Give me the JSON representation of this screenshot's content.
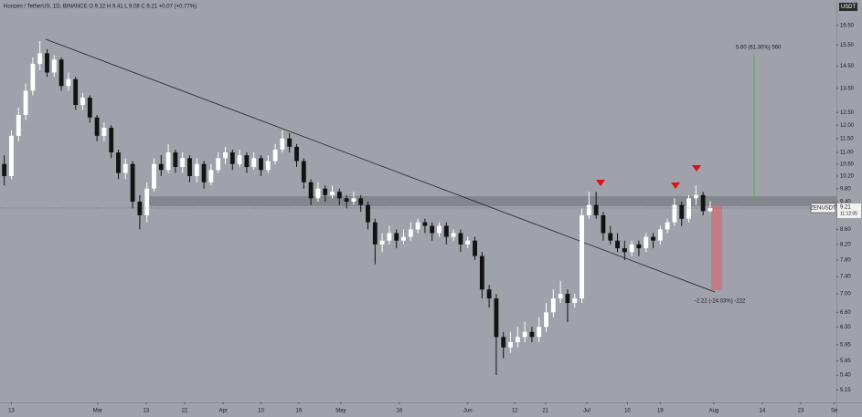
{
  "chart_data": {
    "type": "candlestick",
    "title": "Horizen / TetherUS, 1D, BINANCE  O 9.12  H 9.41  L 9.08  C 9.21  +0.07 (+0.77%)",
    "currency_label": "USDT",
    "log_scale": true,
    "up_color": "#ffffff",
    "down_color": "#131313",
    "xlim": [
      -0.6,
      116.7
    ],
    "ylim": [
      4.95,
      17.9
    ],
    "xticks": [
      {
        "value": 1,
        "label": "13"
      },
      {
        "value": 13.1,
        "label": "Mar"
      },
      {
        "value": 19.9,
        "label": "13"
      },
      {
        "value": 25.3,
        "label": "22"
      },
      {
        "value": 30.7,
        "label": "Apr"
      },
      {
        "value": 36,
        "label": "10"
      },
      {
        "value": 41.3,
        "label": "19"
      },
      {
        "value": 47.2,
        "label": "May"
      },
      {
        "value": 55.4,
        "label": "16"
      },
      {
        "value": 65,
        "label": "Jun"
      },
      {
        "value": 71.6,
        "label": "12"
      },
      {
        "value": 75.9,
        "label": "21"
      },
      {
        "value": 81.7,
        "label": "Jul"
      },
      {
        "value": 87.4,
        "label": "10"
      },
      {
        "value": 92,
        "label": "19"
      },
      {
        "value": 99.5,
        "label": "Aug"
      },
      {
        "value": 106.3,
        "label": "14"
      },
      {
        "value": 111.7,
        "label": "23"
      },
      {
        "value": 116.4,
        "label": "Se"
      }
    ],
    "yticks": [
      {
        "value": 16.5,
        "label": "16.50"
      },
      {
        "value": 15.5,
        "label": "15.50"
      },
      {
        "value": 14.5,
        "label": "14.50"
      },
      {
        "value": 13.5,
        "label": "13.50"
      },
      {
        "value": 12.5,
        "label": "12.50"
      },
      {
        "value": 12,
        "label": "12.00"
      },
      {
        "value": 11.5,
        "label": "11.50"
      },
      {
        "value": 11,
        "label": "11.00"
      },
      {
        "value": 10.6,
        "label": "10.60"
      },
      {
        "value": 10.2,
        "label": "10.20"
      },
      {
        "value": 9.8,
        "label": "9.80"
      },
      {
        "value": 9.4,
        "label": "9.40"
      },
      {
        "value": 9,
        "label": "9.00"
      },
      {
        "value": 8.6,
        "label": "8.60"
      },
      {
        "value": 8.2,
        "label": "8.20"
      },
      {
        "value": 7.8,
        "label": "7.80"
      },
      {
        "value": 7.4,
        "label": "7.40"
      },
      {
        "value": 7,
        "label": "7.00"
      },
      {
        "value": 6.6,
        "label": "6.60"
      },
      {
        "value": 6.3,
        "label": "6.30"
      },
      {
        "value": 5.95,
        "label": "5.95"
      },
      {
        "value": 5.65,
        "label": "5.65"
      },
      {
        "value": 5.4,
        "label": "5.40"
      },
      {
        "value": 5.15,
        "label": "5.15"
      }
    ],
    "candles": [
      [
        10.6,
        10.9,
        9.9,
        10.2
      ],
      [
        10.2,
        11.8,
        10.1,
        11.6
      ],
      [
        11.6,
        12.7,
        11.4,
        12.4
      ],
      [
        12.4,
        13.7,
        12.2,
        13.4
      ],
      [
        13.4,
        14.9,
        13.2,
        14.6
      ],
      [
        14.6,
        15.7,
        14.3,
        15.1
      ],
      [
        15.1,
        15.3,
        14.0,
        14.2
      ],
      [
        14.2,
        15.0,
        14.0,
        14.8
      ],
      [
        14.8,
        14.9,
        13.4,
        13.6
      ],
      [
        13.6,
        14.2,
        13.4,
        13.9
      ],
      [
        13.9,
        14.0,
        12.6,
        12.8
      ],
      [
        12.8,
        13.3,
        12.6,
        13.1
      ],
      [
        13.1,
        13.2,
        12.1,
        12.3
      ],
      [
        12.3,
        12.4,
        11.4,
        11.6
      ],
      [
        11.6,
        12.1,
        11.4,
        11.9
      ],
      [
        11.9,
        12.0,
        10.8,
        11.0
      ],
      [
        11.0,
        11.1,
        10.1,
        10.3
      ],
      [
        10.3,
        10.8,
        10.1,
        10.6
      ],
      [
        10.6,
        10.7,
        9.2,
        9.4
      ],
      [
        9.4,
        9.6,
        8.6,
        9.0
      ],
      [
        9.0,
        10.0,
        8.8,
        9.8
      ],
      [
        9.8,
        10.8,
        9.7,
        10.6
      ],
      [
        10.6,
        10.9,
        10.2,
        10.4
      ],
      [
        10.4,
        11.3,
        10.3,
        11.0
      ],
      [
        11.0,
        11.1,
        10.3,
        10.5
      ],
      [
        10.5,
        11.0,
        10.3,
        10.8
      ],
      [
        10.8,
        10.9,
        10.0,
        10.2
      ],
      [
        10.2,
        10.8,
        10.0,
        10.6
      ],
      [
        10.6,
        10.7,
        9.8,
        10.0
      ],
      [
        10.0,
        10.6,
        9.9,
        10.4
      ],
      [
        10.4,
        11.0,
        10.3,
        10.8
      ],
      [
        10.8,
        11.2,
        10.6,
        11.0
      ],
      [
        11.0,
        11.1,
        10.4,
        10.6
      ],
      [
        10.6,
        11.1,
        10.5,
        10.9
      ],
      [
        10.9,
        11.0,
        10.3,
        10.5
      ],
      [
        10.5,
        11.0,
        10.4,
        10.8
      ],
      [
        10.8,
        10.9,
        10.2,
        10.4
      ],
      [
        10.4,
        10.9,
        10.3,
        10.7
      ],
      [
        10.7,
        11.3,
        10.6,
        11.1
      ],
      [
        11.1,
        11.8,
        11.0,
        11.5
      ],
      [
        11.5,
        11.7,
        11.0,
        11.2
      ],
      [
        11.2,
        11.3,
        10.5,
        10.7
      ],
      [
        10.7,
        10.8,
        9.8,
        10.0
      ],
      [
        10.0,
        10.1,
        9.3,
        9.5
      ],
      [
        9.5,
        10.0,
        9.4,
        9.8
      ],
      [
        9.8,
        9.9,
        9.4,
        9.6
      ],
      [
        9.6,
        9.9,
        9.5,
        9.7
      ],
      [
        9.7,
        9.8,
        9.3,
        9.5
      ],
      [
        9.5,
        9.6,
        9.2,
        9.4
      ],
      [
        9.4,
        9.7,
        9.3,
        9.5
      ],
      [
        9.5,
        9.6,
        9.1,
        9.3
      ],
      [
        9.3,
        9.4,
        8.6,
        8.8
      ],
      [
        8.8,
        8.9,
        7.7,
        8.2
      ],
      [
        8.2,
        8.5,
        8.0,
        8.3
      ],
      [
        8.3,
        8.7,
        8.2,
        8.5
      ],
      [
        8.5,
        8.6,
        8.1,
        8.3
      ],
      [
        8.3,
        8.6,
        8.2,
        8.4
      ],
      [
        8.4,
        8.8,
        8.3,
        8.6
      ],
      [
        8.6,
        8.9,
        8.5,
        8.8
      ],
      [
        8.8,
        8.9,
        8.5,
        8.7
      ],
      [
        8.7,
        8.8,
        8.3,
        8.5
      ],
      [
        8.5,
        8.8,
        8.4,
        8.7
      ],
      [
        8.7,
        8.8,
        8.2,
        8.4
      ],
      [
        8.4,
        8.6,
        8.3,
        8.5
      ],
      [
        8.5,
        8.6,
        8.0,
        8.2
      ],
      [
        8.2,
        8.4,
        8.1,
        8.3
      ],
      [
        8.3,
        8.4,
        7.8,
        7.9
      ],
      [
        7.9,
        8.0,
        6.9,
        7.1
      ],
      [
        7.1,
        7.2,
        6.7,
        6.9
      ],
      [
        6.9,
        7.0,
        5.4,
        6.1
      ],
      [
        6.1,
        6.2,
        5.7,
        5.9
      ],
      [
        5.9,
        6.2,
        5.8,
        6.0
      ],
      [
        6.0,
        6.3,
        5.9,
        6.1
      ],
      [
        6.1,
        6.4,
        6.0,
        6.2
      ],
      [
        6.2,
        6.3,
        6.0,
        6.1
      ],
      [
        6.1,
        6.5,
        6.0,
        6.3
      ],
      [
        6.3,
        6.8,
        6.2,
        6.6
      ],
      [
        6.6,
        7.1,
        6.5,
        6.9
      ],
      [
        6.9,
        7.3,
        6.8,
        7.0
      ],
      [
        7.0,
        7.1,
        6.4,
        6.8
      ],
      [
        6.8,
        7.0,
        6.7,
        6.9
      ],
      [
        6.9,
        9.2,
        6.8,
        9.0
      ],
      [
        9.0,
        9.7,
        8.9,
        9.3
      ],
      [
        9.3,
        9.7,
        8.9,
        9.0
      ],
      [
        9.0,
        9.1,
        8.3,
        8.5
      ],
      [
        8.5,
        8.7,
        8.2,
        8.3
      ],
      [
        8.3,
        8.5,
        8.0,
        8.1
      ],
      [
        8.1,
        8.3,
        7.8,
        8.0
      ],
      [
        8.0,
        8.3,
        7.9,
        8.2
      ],
      [
        8.2,
        8.3,
        7.9,
        8.1
      ],
      [
        8.1,
        8.5,
        8.0,
        8.4
      ],
      [
        8.4,
        8.5,
        8.1,
        8.3
      ],
      [
        8.3,
        8.7,
        8.2,
        8.6
      ],
      [
        8.6,
        8.9,
        8.5,
        8.8
      ],
      [
        8.8,
        9.5,
        8.7,
        9.3
      ],
      [
        9.3,
        9.4,
        8.7,
        8.9
      ],
      [
        8.9,
        9.6,
        8.8,
        9.5
      ],
      [
        9.5,
        9.9,
        9.3,
        9.6
      ],
      [
        9.6,
        9.7,
        9.0,
        9.12
      ],
      [
        9.12,
        9.41,
        9.08,
        9.21
      ]
    ],
    "symbol_label": "ZENUSDT",
    "last_price": 9.21,
    "countdown": "11:12:05",
    "annotations": [
      "5.60 (61.30%) 560",
      "-2.22 (-24.03%) -222"
    ]
  }
}
